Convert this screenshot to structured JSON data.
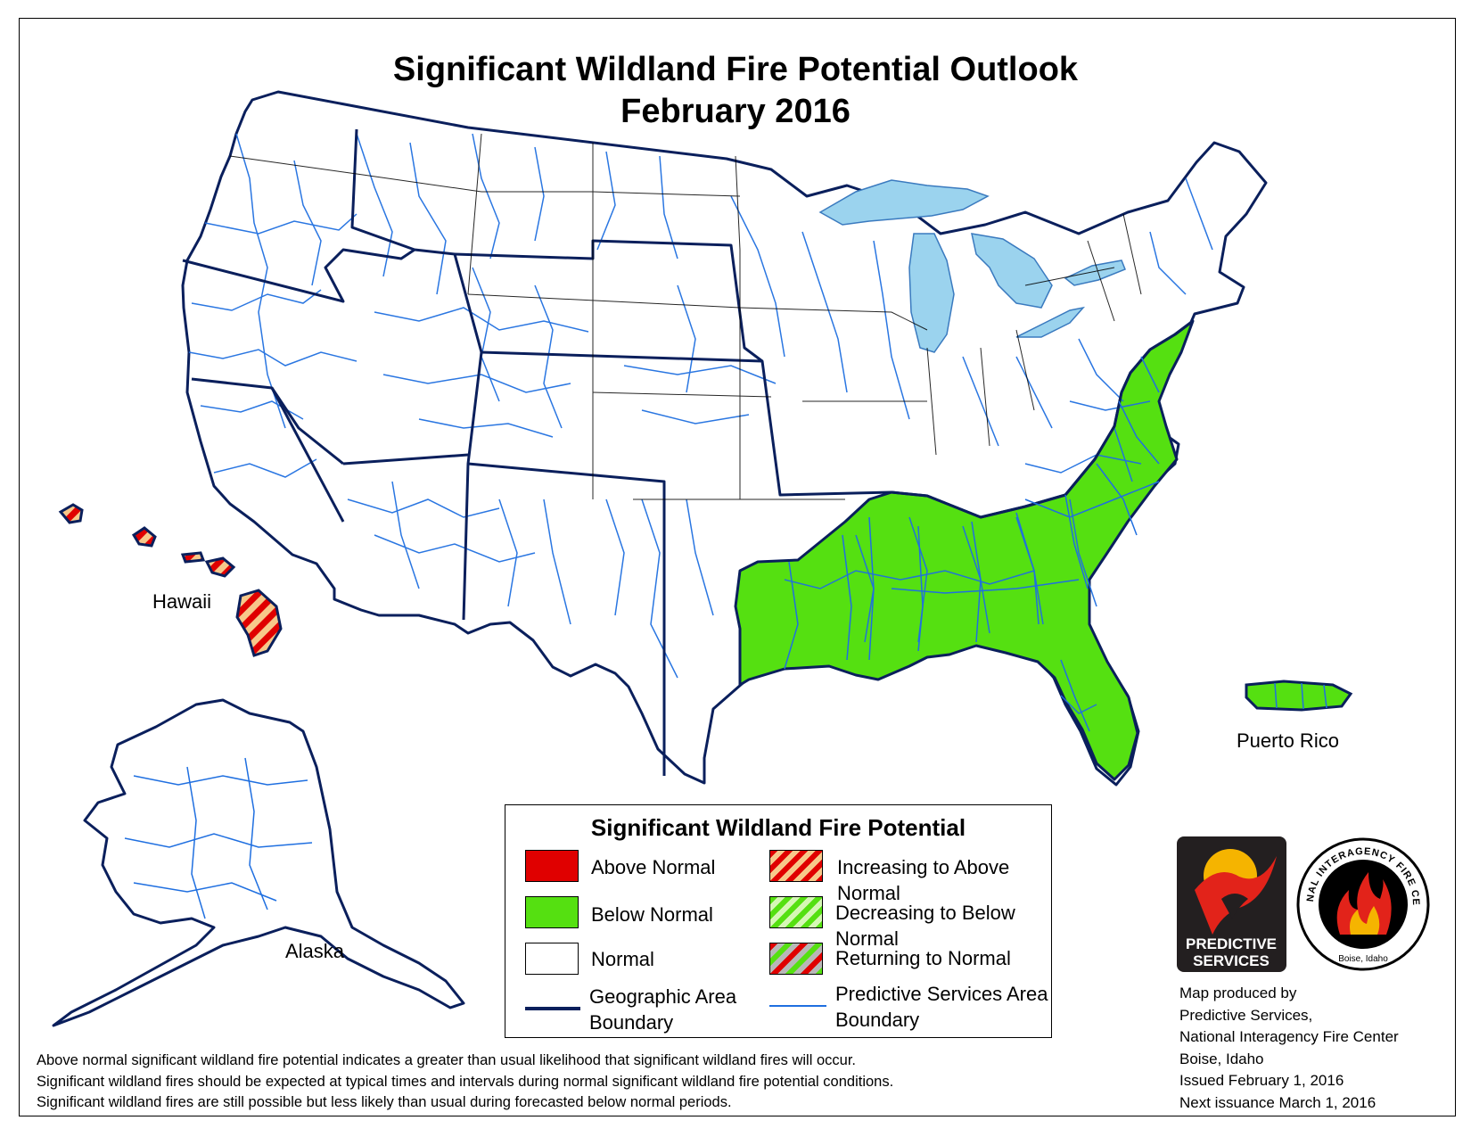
{
  "title_line1": "Significant Wildland Fire Potential Outlook",
  "title_line2": "February 2016",
  "labels": {
    "hawaii": "Hawaii",
    "alaska": "Alaska",
    "puerto_rico": "Puerto Rico"
  },
  "colors": {
    "above_normal": "#e00000",
    "below_normal": "#55e011",
    "normal": "#ffffff",
    "stripe_increasing": "#f7c88a",
    "stripe_returning": "#b8b8b8",
    "geographic_boundary": "#0a1f5c",
    "psa_boundary": "#1f6fe0",
    "lakes": "#9bd3ee"
  },
  "legend": {
    "title": "Significant Wildland Fire Potential",
    "items": [
      {
        "key": "above_normal",
        "label": "Above Normal"
      },
      {
        "key": "below_normal",
        "label": "Below Normal"
      },
      {
        "key": "normal",
        "label": "Normal"
      },
      {
        "key": "geographic_area",
        "label_line1": "Geographic Area",
        "label_line2": "Boundary"
      },
      {
        "key": "increasing_above",
        "label": "Increasing to Above Normal"
      },
      {
        "key": "decreasing_below",
        "label": "Decreasing to Below Normal"
      },
      {
        "key": "returning_normal",
        "label": "Returning to Normal"
      },
      {
        "key": "psa_boundary",
        "label_line1": "Predictive Services Area",
        "label_line2": "Boundary"
      }
    ]
  },
  "regions": {
    "southeast": "below_normal",
    "puerto_rico": "below_normal",
    "hawaii": "increasing_above"
  },
  "footnote": [
    "Above normal significant wildland fire potential indicates a greater than usual likelihood that significant wildland fires will occur.",
    "Significant wildland fires should be expected at typical times and intervals during normal significant wildland fire potential conditions.",
    "Significant wildland fires are still possible but less likely than usual during forecasted below normal periods."
  ],
  "credits": [
    "Map produced by",
    "Predictive Services,",
    "National Interagency Fire Center",
    "Boise, Idaho",
    "Issued February 1, 2016",
    "Next issuance March 1, 2016"
  ],
  "logos": {
    "predictive_services": {
      "line1": "PREDICTIVE",
      "line2": "SERVICES"
    },
    "nifc": {
      "ring_text": "NATIONAL INTERAGENCY FIRE CENTER",
      "bottom_text": "Boise, Idaho"
    }
  }
}
